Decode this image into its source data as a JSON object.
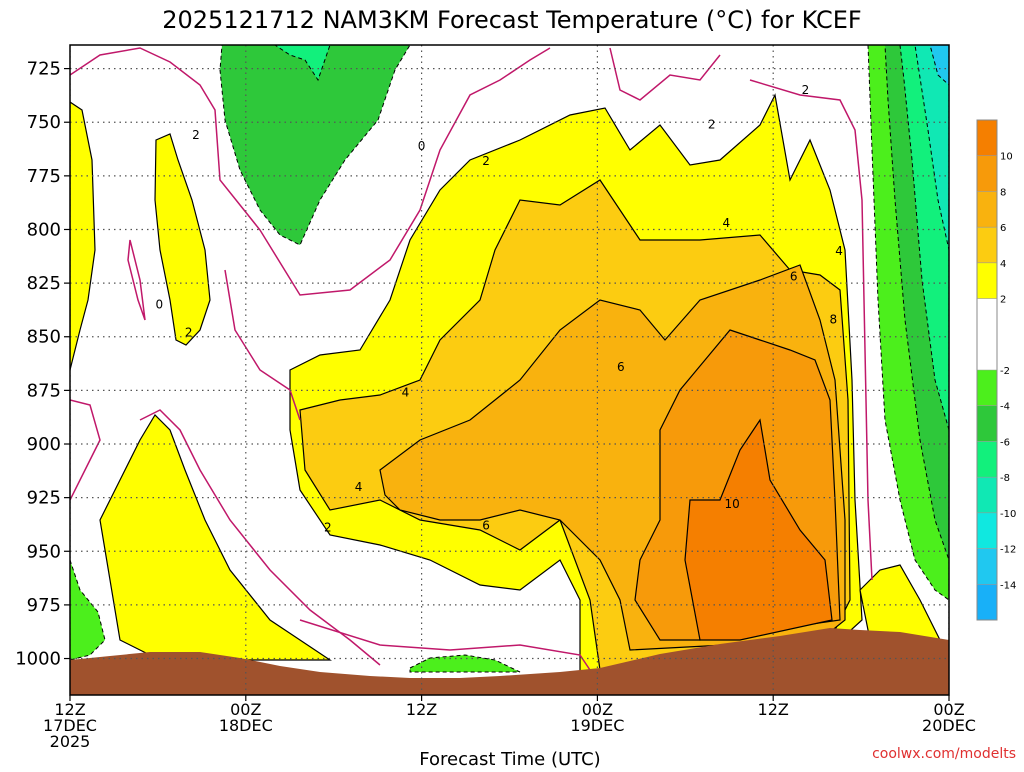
{
  "chart_data": {
    "type": "contour",
    "title": "2025121712 NAM3KM Forecast Temperature (°C) for KCEF",
    "xlabel": "Forecast Time (UTC)",
    "credit": "coolwx.com/modelts",
    "y_axis": {
      "quantity": "pressure (hPa)",
      "ticks": [
        "725",
        "750",
        "775",
        "800",
        "825",
        "850",
        "875",
        "900",
        "925",
        "950",
        "975",
        "1000"
      ],
      "range": [
        1017,
        714
      ]
    },
    "x_axis": {
      "range_hours": [
        0,
        60
      ],
      "ticks": [
        {
          "hour": 0,
          "line1": "12Z",
          "line2": "17DEC",
          "line3": "2025"
        },
        {
          "hour": 12,
          "line1": "00Z",
          "line2": "18DEC",
          "line3": ""
        },
        {
          "hour": 24,
          "line1": "12Z",
          "line2": "",
          "line3": ""
        },
        {
          "hour": 36,
          "line1": "00Z",
          "line2": "19DEC",
          "line3": ""
        },
        {
          "hour": 48,
          "line1": "12Z",
          "line2": "",
          "line3": ""
        },
        {
          "hour": 60,
          "line1": "00Z",
          "line2": "20DEC",
          "line3": ""
        }
      ]
    },
    "colorbar": {
      "ticks": [
        "10",
        "8",
        "6",
        "4",
        "2",
        "-2",
        "-4",
        "-6",
        "-8",
        "-10",
        "-12",
        "-14"
      ],
      "bands": [
        {
          "min": 10,
          "max": 12,
          "color": "#f57f00"
        },
        {
          "min": 8,
          "max": 10,
          "color": "#f79a0a"
        },
        {
          "min": 6,
          "max": 8,
          "color": "#f9b20e"
        },
        {
          "min": 4,
          "max": 6,
          "color": "#fccc11"
        },
        {
          "min": 2,
          "max": 4,
          "color": "#ffff00"
        },
        {
          "min": -2,
          "max": 2,
          "color": "#ffffff"
        },
        {
          "min": -4,
          "max": -2,
          "color": "#4cef1c"
        },
        {
          "min": -6,
          "max": -4,
          "color": "#2ec83a"
        },
        {
          "min": -8,
          "max": -6,
          "color": "#12f07c"
        },
        {
          "min": -10,
          "max": -8,
          "color": "#10e8b4"
        },
        {
          "min": -12,
          "max": -10,
          "color": "#10e8e0"
        },
        {
          "min": -14,
          "max": -12,
          "color": "#20c8f0"
        },
        {
          "min": -16,
          "max": -14,
          "color": "#18b0f8"
        }
      ]
    },
    "contour_labels": [
      {
        "text": "2",
        "hour": 8.6,
        "p": 756
      },
      {
        "text": "0",
        "hour": 6.1,
        "p": 835
      },
      {
        "text": "2",
        "hour": 8.1,
        "p": 848
      },
      {
        "text": "0",
        "hour": 24.0,
        "p": 761
      },
      {
        "text": "2",
        "hour": 28.4,
        "p": 768
      },
      {
        "text": "2",
        "hour": 43.8,
        "p": 751
      },
      {
        "text": "2",
        "hour": 50.2,
        "p": 735
      },
      {
        "text": "4",
        "hour": 44.8,
        "p": 797
      },
      {
        "text": "4",
        "hour": 52.5,
        "p": 810
      },
      {
        "text": "6",
        "hour": 49.4,
        "p": 822
      },
      {
        "text": "8",
        "hour": 52.1,
        "p": 842
      },
      {
        "text": "6",
        "hour": 37.6,
        "p": 864
      },
      {
        "text": "4",
        "hour": 22.9,
        "p": 876
      },
      {
        "text": "4",
        "hour": 19.7,
        "p": 920
      },
      {
        "text": "2",
        "hour": 17.6,
        "p": 939
      },
      {
        "text": "6",
        "hour": 28.4,
        "p": 938
      },
      {
        "text": "10",
        "hour": 45.2,
        "p": 928
      }
    ],
    "regions": [
      {
        "band": "yellow2",
        "note": "warm layer 2-4C dominant 800-1000 hPa mid period"
      },
      {
        "band": "orange10",
        "note": "max >10C near 925-975 hPa around 12Z 19DEC"
      },
      {
        "band": "green",
        "note": "sub-zero aloft 725-800 hPa near 00Z 18DEC and after 18Z 19DEC"
      }
    ]
  }
}
